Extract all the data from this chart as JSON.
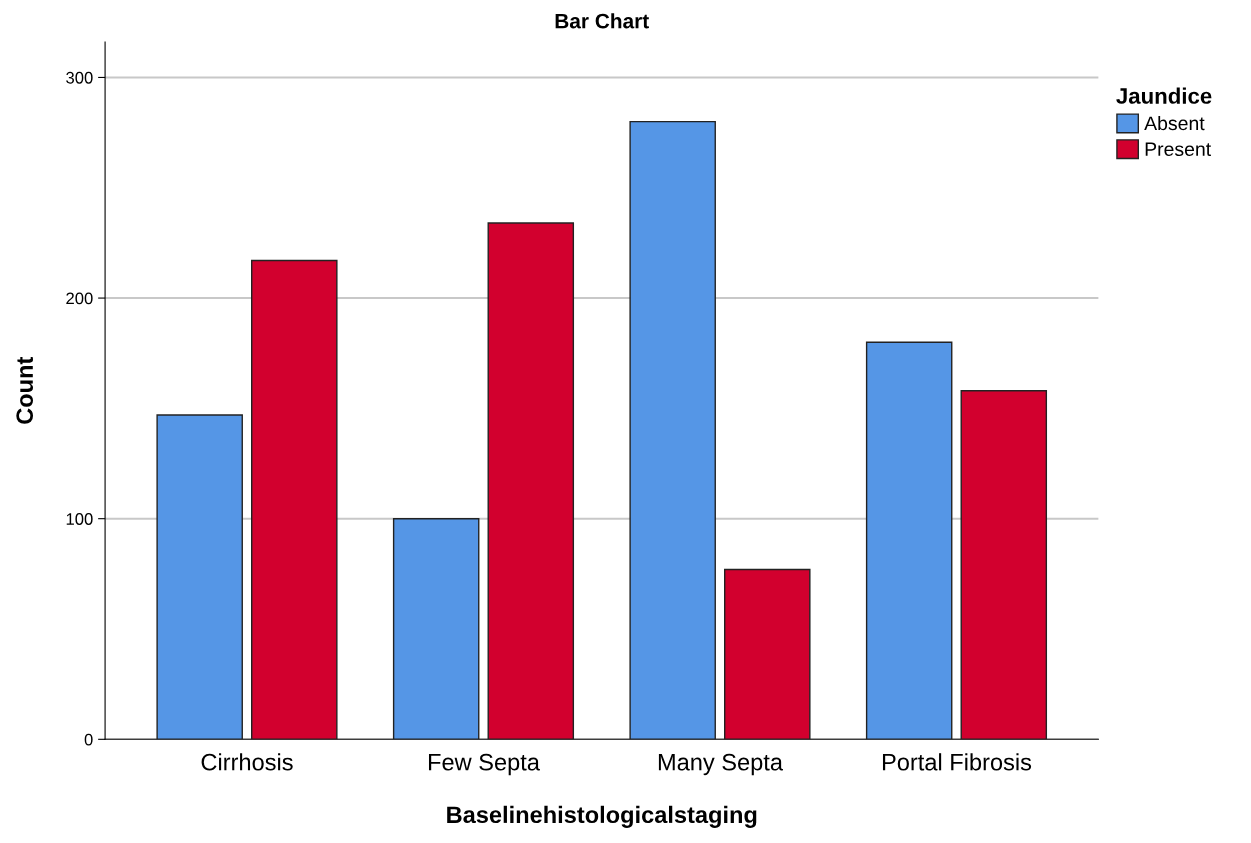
{
  "chart_data": {
    "type": "bar",
    "title": "Bar Chart",
    "xlabel": "Baselinehistologicalstaging",
    "ylabel": "Count",
    "categories": [
      "Cirrhosis",
      "Few Septa",
      "Many Septa",
      "Portal Fibrosis"
    ],
    "series": [
      {
        "name": "Absent",
        "color": "#5596e6",
        "values": [
          147,
          100,
          280,
          180
        ]
      },
      {
        "name": "Present",
        "color": "#d2002e",
        "values": [
          217,
          234,
          77,
          158
        ]
      }
    ],
    "legend_title": "Jaundice",
    "legend": "top right",
    "ylim": [
      0,
      316
    ],
    "yticks": [
      0,
      100,
      200,
      300
    ],
    "grid": "y"
  }
}
